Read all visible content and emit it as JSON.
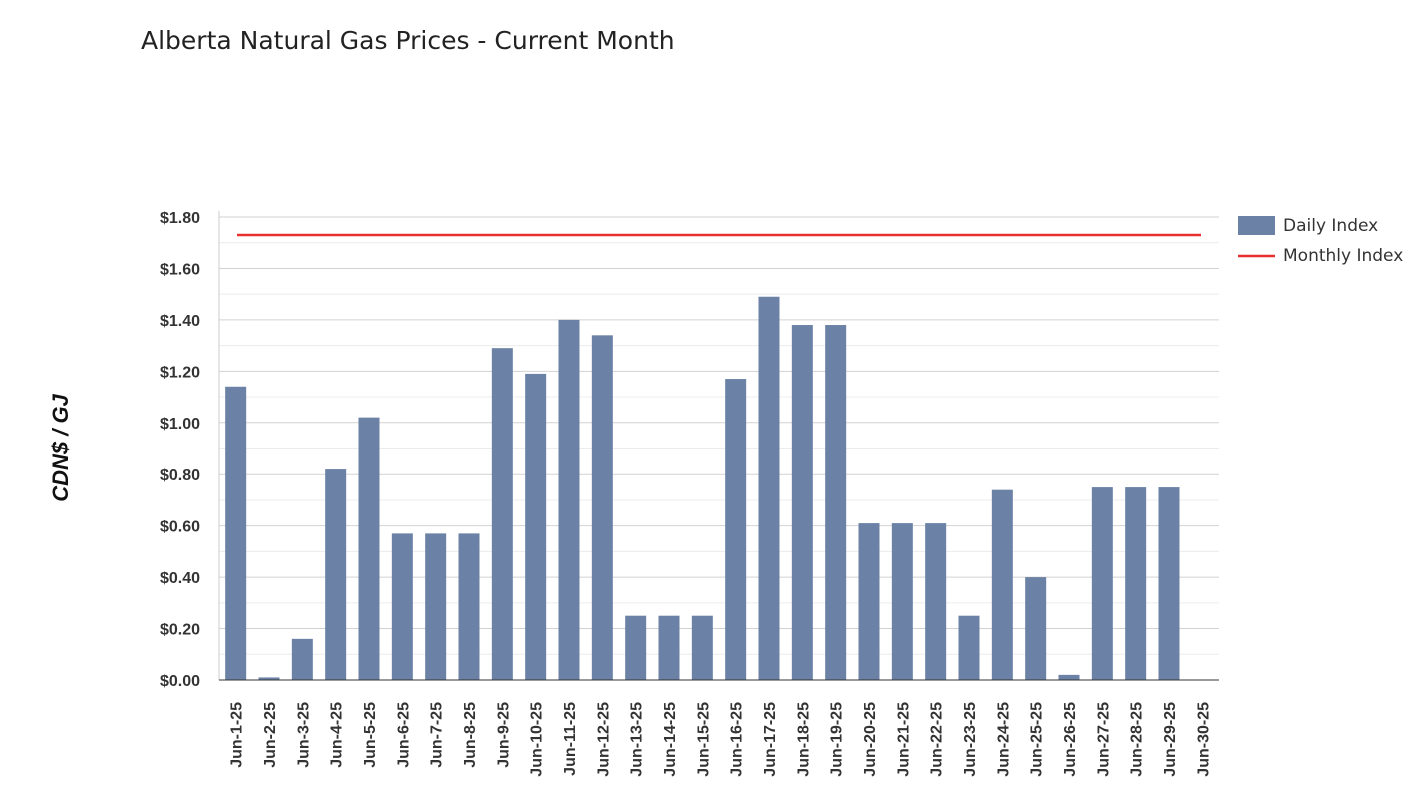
{
  "page": {
    "title": "Alberta Natural Gas Prices - Current Month"
  },
  "chart_data": {
    "type": "bar",
    "title": "Alberta Natural Gas Prices - Current Month",
    "xlabel": "",
    "ylabel": "CDN$ / GJ",
    "ylim": [
      0,
      1.8
    ],
    "y_ticks": [
      0,
      0.2,
      0.4,
      0.6,
      0.8,
      1.0,
      1.2,
      1.4,
      1.6,
      1.8
    ],
    "y_tick_labels": [
      "$0.00",
      "$0.20",
      "$0.40",
      "$0.60",
      "$0.80",
      "$1.00",
      "$1.20",
      "$1.40",
      "$1.60",
      "$1.80"
    ],
    "grid": true,
    "legend_position": "top-right",
    "categories": [
      "Jun-1-25",
      "Jun-2-25",
      "Jun-3-25",
      "Jun-4-25",
      "Jun-5-25",
      "Jun-6-25",
      "Jun-7-25",
      "Jun-8-25",
      "Jun-9-25",
      "Jun-10-25",
      "Jun-11-25",
      "Jun-12-25",
      "Jun-13-25",
      "Jun-14-25",
      "Jun-15-25",
      "Jun-16-25",
      "Jun-17-25",
      "Jun-18-25",
      "Jun-19-25",
      "Jun-20-25",
      "Jun-21-25",
      "Jun-22-25",
      "Jun-23-25",
      "Jun-24-25",
      "Jun-25-25",
      "Jun-26-25",
      "Jun-27-25",
      "Jun-28-25",
      "Jun-29-25",
      "Jun-30-25"
    ],
    "series": [
      {
        "name": "Daily Index",
        "type": "bar",
        "color": "#6b82a6",
        "values": [
          1.14,
          0.01,
          0.16,
          0.82,
          1.02,
          0.57,
          0.57,
          0.57,
          1.29,
          1.19,
          1.4,
          1.34,
          0.25,
          0.25,
          0.25,
          1.17,
          1.49,
          1.38,
          1.38,
          0.61,
          0.61,
          0.61,
          0.25,
          0.74,
          0.4,
          0.02,
          0.75,
          0.75,
          0.75,
          null
        ]
      },
      {
        "name": "Monthly Index",
        "type": "line",
        "color": "#e8312f",
        "value": 1.73
      }
    ]
  }
}
